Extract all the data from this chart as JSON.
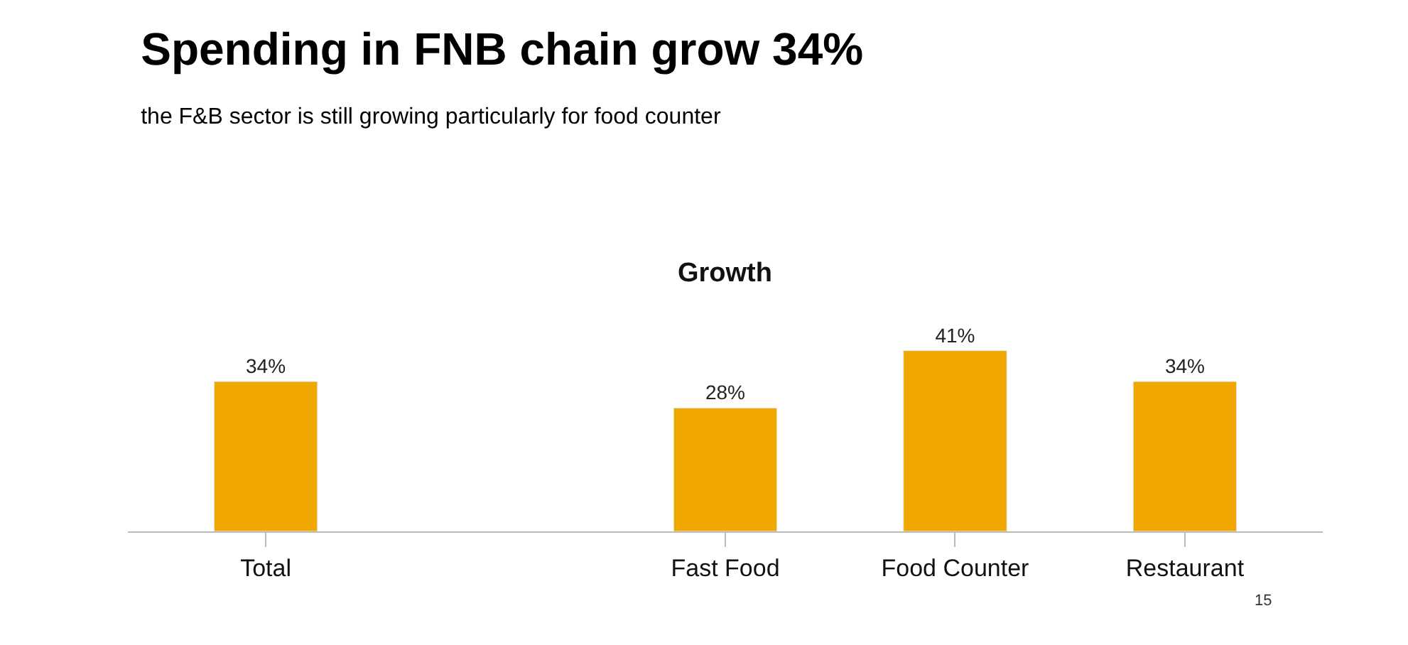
{
  "chart_data": {
    "type": "bar",
    "title": "Spending in FNB chain grow 34%",
    "subtitle": "the F&B sector is still growing particularly for food counter",
    "categories": [
      "Total",
      null,
      "Fast Food",
      "Food Counter",
      "Restaurant"
    ],
    "values": [
      34,
      null,
      28,
      41,
      34
    ],
    "value_labels": [
      "34%",
      null,
      "28%",
      "41%",
      "34%"
    ],
    "color": "#f0a800",
    "annotations": [
      "Growth",
      "15"
    ]
  }
}
